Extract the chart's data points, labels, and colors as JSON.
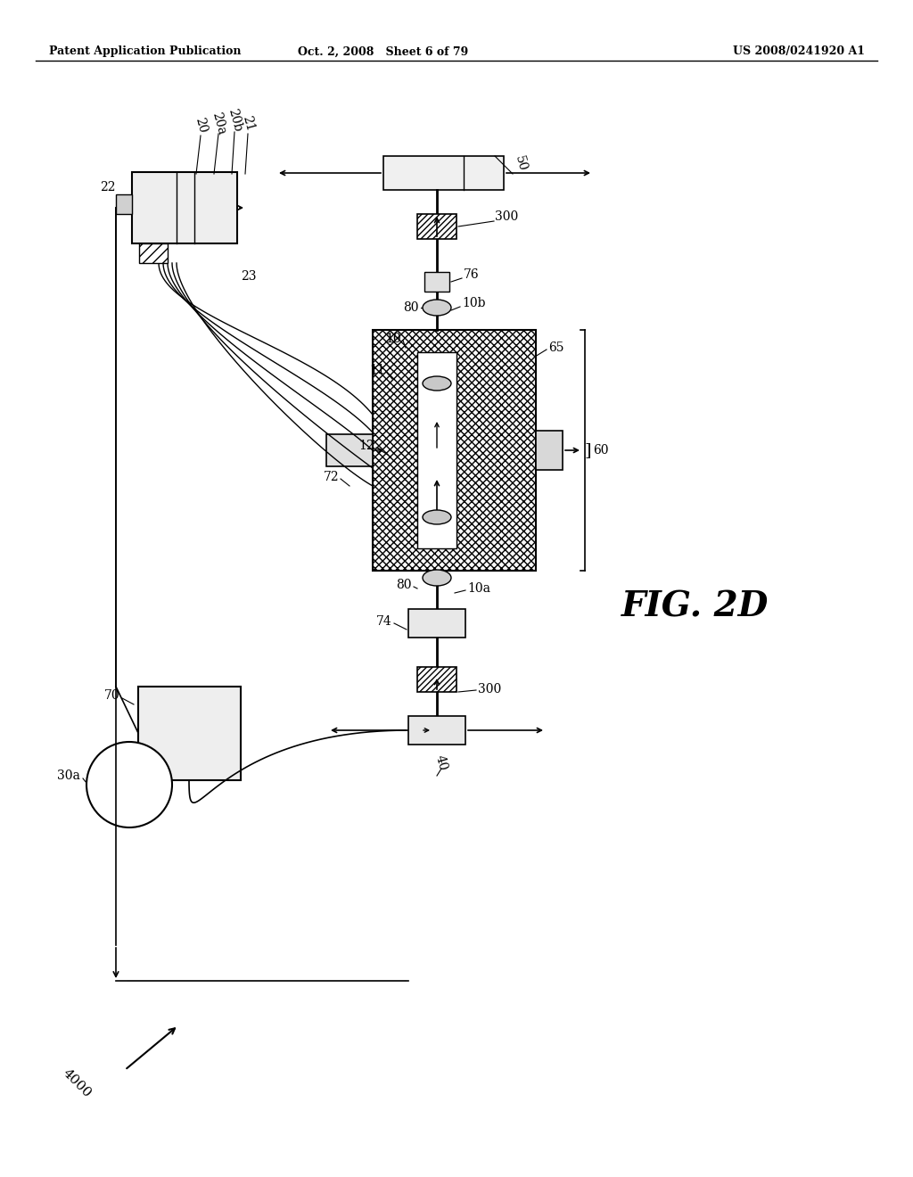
{
  "title_left": "Patent Application Publication",
  "title_center": "Oct. 2, 2008   Sheet 6 of 79",
  "title_right": "US 2008/0241920 A1",
  "fig_label": "FIG. 2D",
  "background": "#ffffff",
  "line_color": "#000000"
}
